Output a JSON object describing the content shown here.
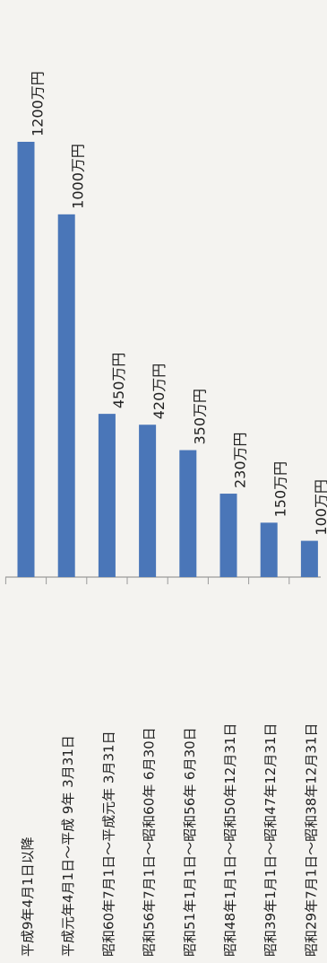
{
  "chart_data": {
    "type": "bar",
    "orientation": "horizontal",
    "categories": [
      "平成9年4月1日以降",
      "平成元年4月1日～平成 9年 3月31日",
      "昭和60年7月1日～平成元年 3月31日",
      "昭和56年7月1日～昭和60年 6月30日",
      "昭和51年1月1日～昭和56年 6月30日",
      "昭和48年1月1日～昭和50年12月31日",
      "昭和39年1月1日～昭和47年12月31日",
      "昭和29年7月1日～昭和38年12月31日"
    ],
    "values": [
      1200,
      1000,
      450,
      420,
      350,
      230,
      150,
      100
    ],
    "value_labels": [
      "1200万円",
      "1000万円",
      "450万円",
      "420万円",
      "350万円",
      "230万円",
      "150万円",
      "100万円"
    ],
    "unit": "万円",
    "xlim": [
      0,
      1200
    ],
    "bar_color": "#4a76b8",
    "grid": false,
    "legend": "none"
  }
}
